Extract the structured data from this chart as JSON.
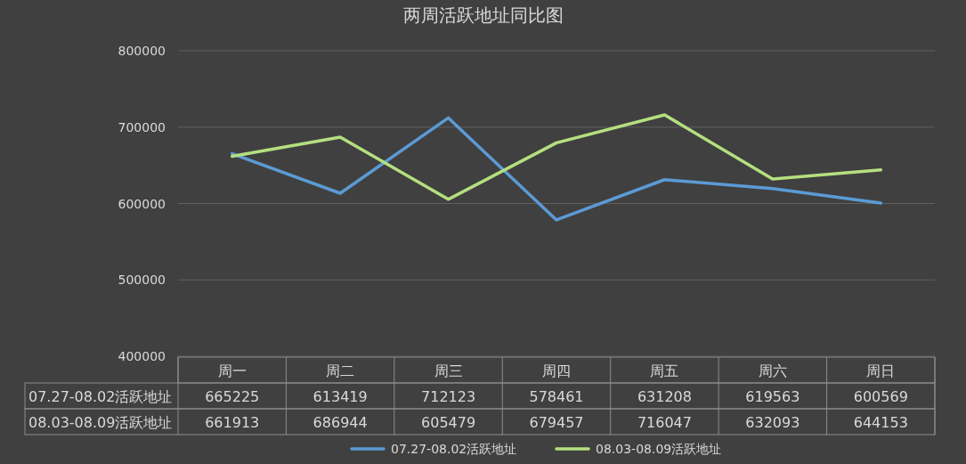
{
  "chart_data": {
    "type": "line",
    "title": "两周活跃地址同比图",
    "categories": [
      "周一",
      "周二",
      "周三",
      "周四",
      "周五",
      "周六",
      "周日"
    ],
    "series": [
      {
        "name": "07.27-08.02活跃地址",
        "color": "#5b9bd5",
        "values": [
          665225,
          613419,
          712123,
          578461,
          631208,
          619563,
          600569
        ]
      },
      {
        "name": "08.03-08.09活跃地址",
        "color": "#b4e07f",
        "values": [
          661913,
          686944,
          605479,
          679457,
          716047,
          632093,
          644153
        ]
      }
    ],
    "ylim": [
      400000,
      800000
    ],
    "yticks": [
      400000,
      500000,
      600000,
      700000,
      800000
    ],
    "grid": "y",
    "legend": "bottom",
    "data_labels": true
  }
}
